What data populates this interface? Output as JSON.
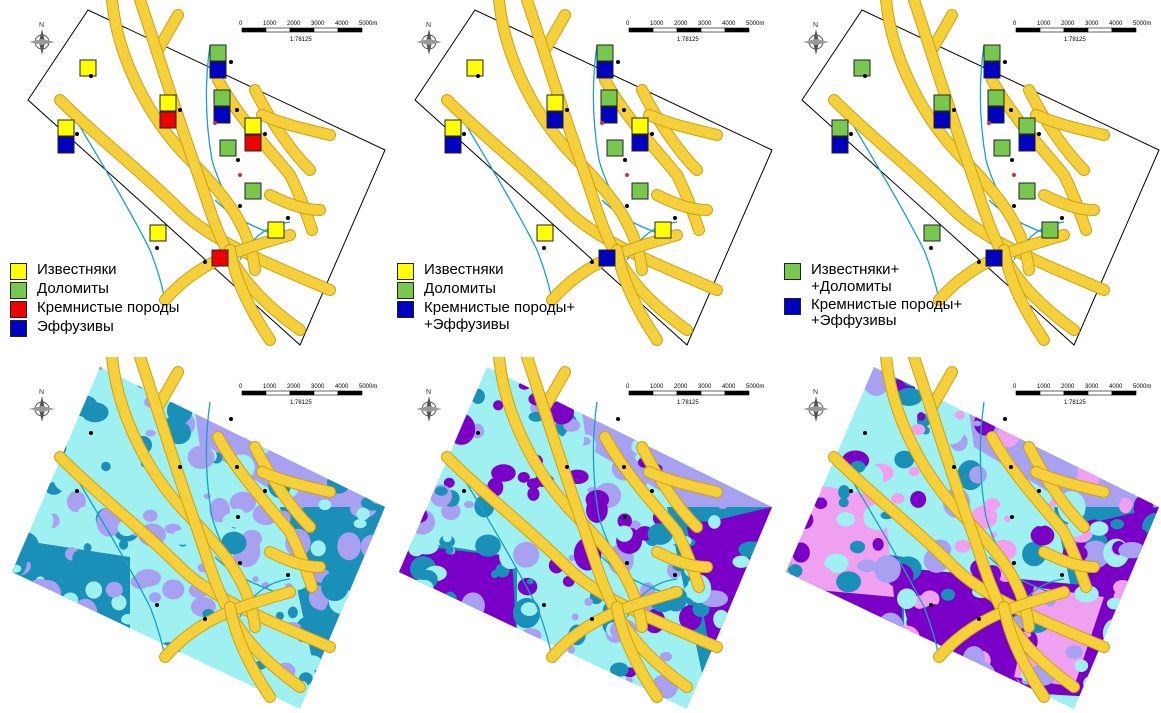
{
  "scale": {
    "ticks": [
      "0",
      "1000",
      "2000",
      "3000",
      "4000",
      "5000m"
    ],
    "ratio": "1:78125"
  },
  "colors": {
    "limestone": "#ffff00",
    "dolomite": "#78c850",
    "siliceous": "#ee0000",
    "effusive": "#0000c0",
    "road": "#f5d03a",
    "river": "#1aa0c0",
    "class_cyan": "#9ff0f0",
    "class_teal": "#1a8fb8",
    "class_lavender": "#a8a0f0",
    "class_violet": "#7a00c8",
    "class_pink": "#f0a0f0"
  },
  "icons": {
    "north_arrow": "compass-rose-icon"
  },
  "maps": [
    {
      "legend": [
        {
          "label": "Известняки",
          "color": "#ffff00"
        },
        {
          "label": "Доломиты",
          "color": "#78c850"
        },
        {
          "label": "Кремнистые породы",
          "color": "#ee0000"
        },
        {
          "label": "Эффузивы",
          "color": "#0000c0"
        }
      ]
    },
    {
      "legend": [
        {
          "label": "Известняки",
          "color": "#ffff00"
        },
        {
          "label": "Доломиты",
          "color": "#78c850"
        },
        {
          "label": "Кремнистые породы+\n+Эффузивы",
          "color": "#0000c0"
        }
      ]
    },
    {
      "legend": [
        {
          "label": "Известняки+\n+Доломиты",
          "color": "#78c850"
        },
        {
          "label": "Кремнистые породы+\n+Эффузивы",
          "color": "#0000c0"
        }
      ]
    },
    {
      "classes": [
        "#9ff0f0",
        "#1a8fb8",
        "#a8a0f0"
      ]
    },
    {
      "classes": [
        "#9ff0f0",
        "#1a8fb8",
        "#a8a0f0",
        "#7a00c8"
      ]
    },
    {
      "classes": [
        "#9ff0f0",
        "#1a8fb8",
        "#a8a0f0",
        "#7a00c8",
        "#f0a0f0"
      ]
    }
  ]
}
